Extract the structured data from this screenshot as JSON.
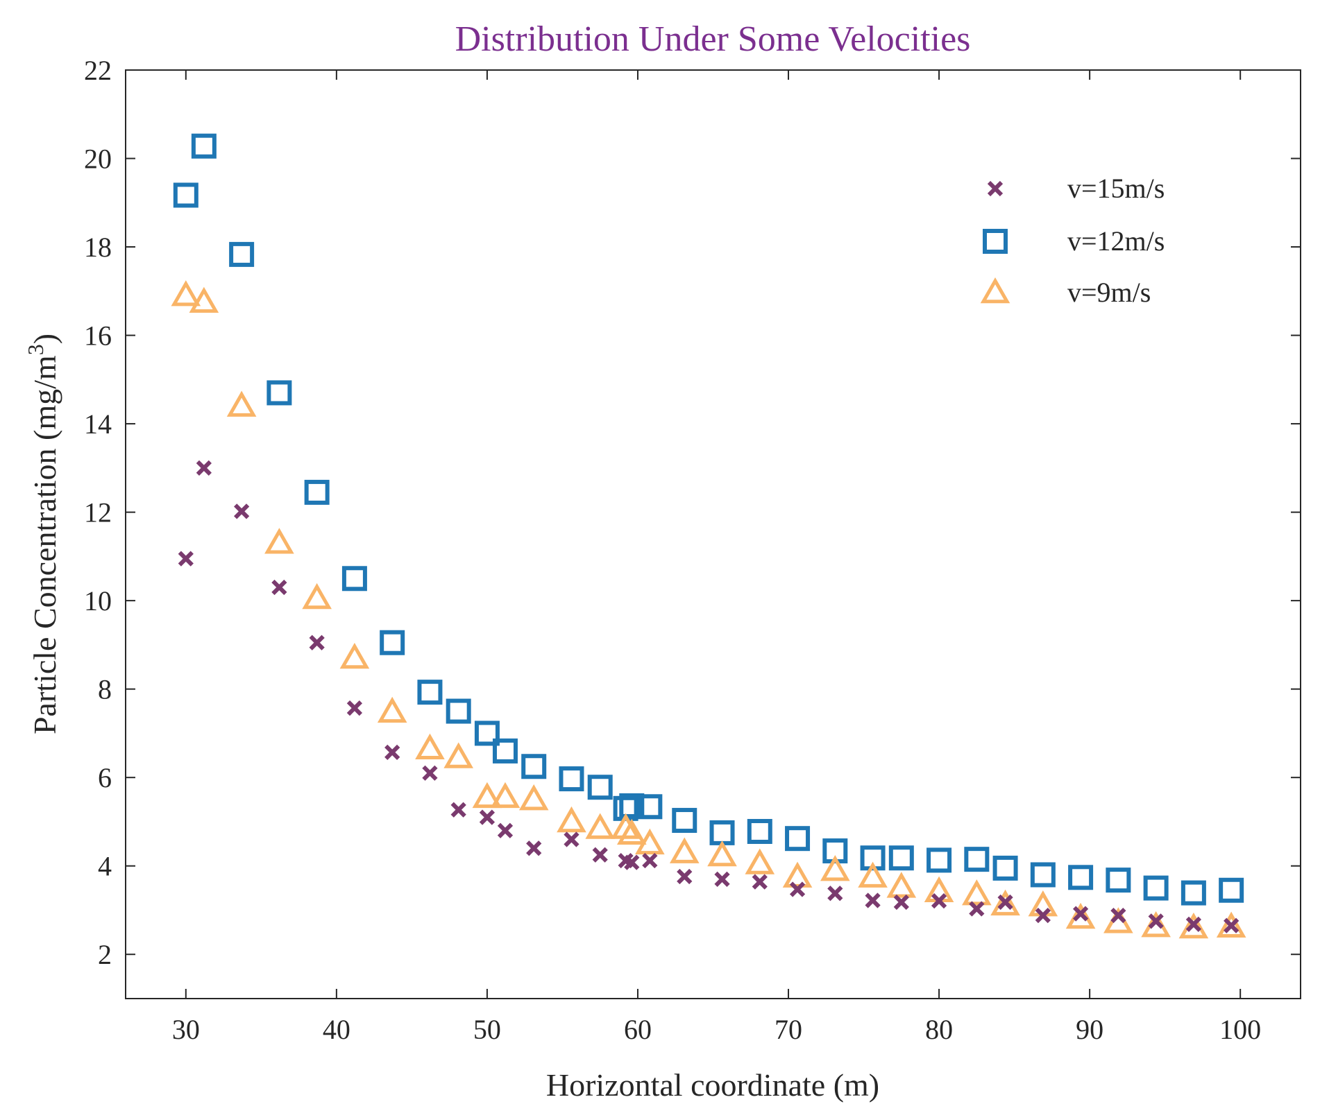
{
  "chart_data": {
    "type": "scatter",
    "title": "Distribution Under Some Velocities",
    "xlabel": "Horizontal coordinate (m)",
    "ylabel_main": "Particle Concentration (mg/m",
    "ylabel_sup": "3",
    "ylabel_close": ")",
    "xlim": [
      26,
      104
    ],
    "ylim": [
      1,
      22
    ],
    "xticks": [
      30,
      40,
      50,
      60,
      70,
      80,
      90,
      100
    ],
    "yticks": [
      2,
      4,
      6,
      8,
      10,
      12,
      14,
      16,
      18,
      20,
      22
    ],
    "legend_position": "top-right",
    "series": [
      {
        "name": "v=15m/s",
        "marker": "x",
        "color": "#7a3a6e",
        "x": [
          30,
          31.2,
          33.7,
          36.2,
          38.7,
          41.2,
          43.7,
          46.2,
          48.1,
          50,
          51.2,
          53.1,
          55.6,
          57.5,
          59.2,
          59.6,
          60.8,
          63.1,
          65.6,
          68.1,
          70.6,
          73.1,
          75.6,
          77.5,
          80,
          82.5,
          84.4,
          86.9,
          89.4,
          91.9,
          94.4,
          96.9,
          99.4
        ],
        "y": [
          10.95,
          13,
          12.02,
          10.3,
          9.05,
          7.57,
          6.57,
          6.1,
          5.27,
          5.1,
          4.8,
          4.4,
          4.6,
          4.25,
          4.12,
          4.08,
          4.12,
          3.76,
          3.7,
          3.64,
          3.47,
          3.38,
          3.22,
          3.18,
          3.21,
          3.03,
          3.18,
          2.88,
          2.92,
          2.88,
          2.75,
          2.68,
          2.65
        ]
      },
      {
        "name": "v=12m/s",
        "marker": "square",
        "color": "#1f77b4",
        "x": [
          30,
          31.2,
          33.7,
          36.2,
          38.7,
          41.2,
          43.7,
          46.2,
          48.1,
          50,
          51.2,
          53.1,
          55.6,
          57.5,
          59.2,
          59.6,
          60.8,
          63.1,
          65.6,
          68.1,
          70.6,
          73.1,
          75.6,
          77.5,
          80,
          82.5,
          84.4,
          86.9,
          89.4,
          91.9,
          94.4,
          96.9,
          99.4
        ],
        "y": [
          19.17,
          20.28,
          17.83,
          14.7,
          12.45,
          10.5,
          9.05,
          7.93,
          7.5,
          7.0,
          6.6,
          6.25,
          5.97,
          5.78,
          5.3,
          5.36,
          5.34,
          5.03,
          4.75,
          4.78,
          4.62,
          4.34,
          4.18,
          4.18,
          4.13,
          4.15,
          3.95,
          3.8,
          3.74,
          3.68,
          3.5,
          3.39,
          3.45
        ]
      },
      {
        "name": "v=9m/s",
        "marker": "triangle",
        "color": "#f9b467",
        "x": [
          30,
          31.2,
          33.7,
          36.2,
          38.7,
          41.2,
          43.7,
          46.2,
          48.1,
          50,
          51.2,
          53.1,
          55.6,
          57.5,
          59.2,
          59.6,
          60.8,
          63.1,
          65.6,
          68.1,
          70.6,
          73.1,
          75.6,
          77.5,
          80,
          82.5,
          84.4,
          86.9,
          89.4,
          91.9,
          94.4,
          96.9,
          99.4
        ],
        "y": [
          16.9,
          16.75,
          14.4,
          11.3,
          10.05,
          8.7,
          7.48,
          6.65,
          6.45,
          5.55,
          5.55,
          5.5,
          5.0,
          4.85,
          4.85,
          4.72,
          4.5,
          4.3,
          4.23,
          4.05,
          3.75,
          3.9,
          3.75,
          3.52,
          3.42,
          3.35,
          3.12,
          3.1,
          2.82,
          2.72,
          2.63,
          2.6,
          2.62
        ]
      }
    ]
  }
}
